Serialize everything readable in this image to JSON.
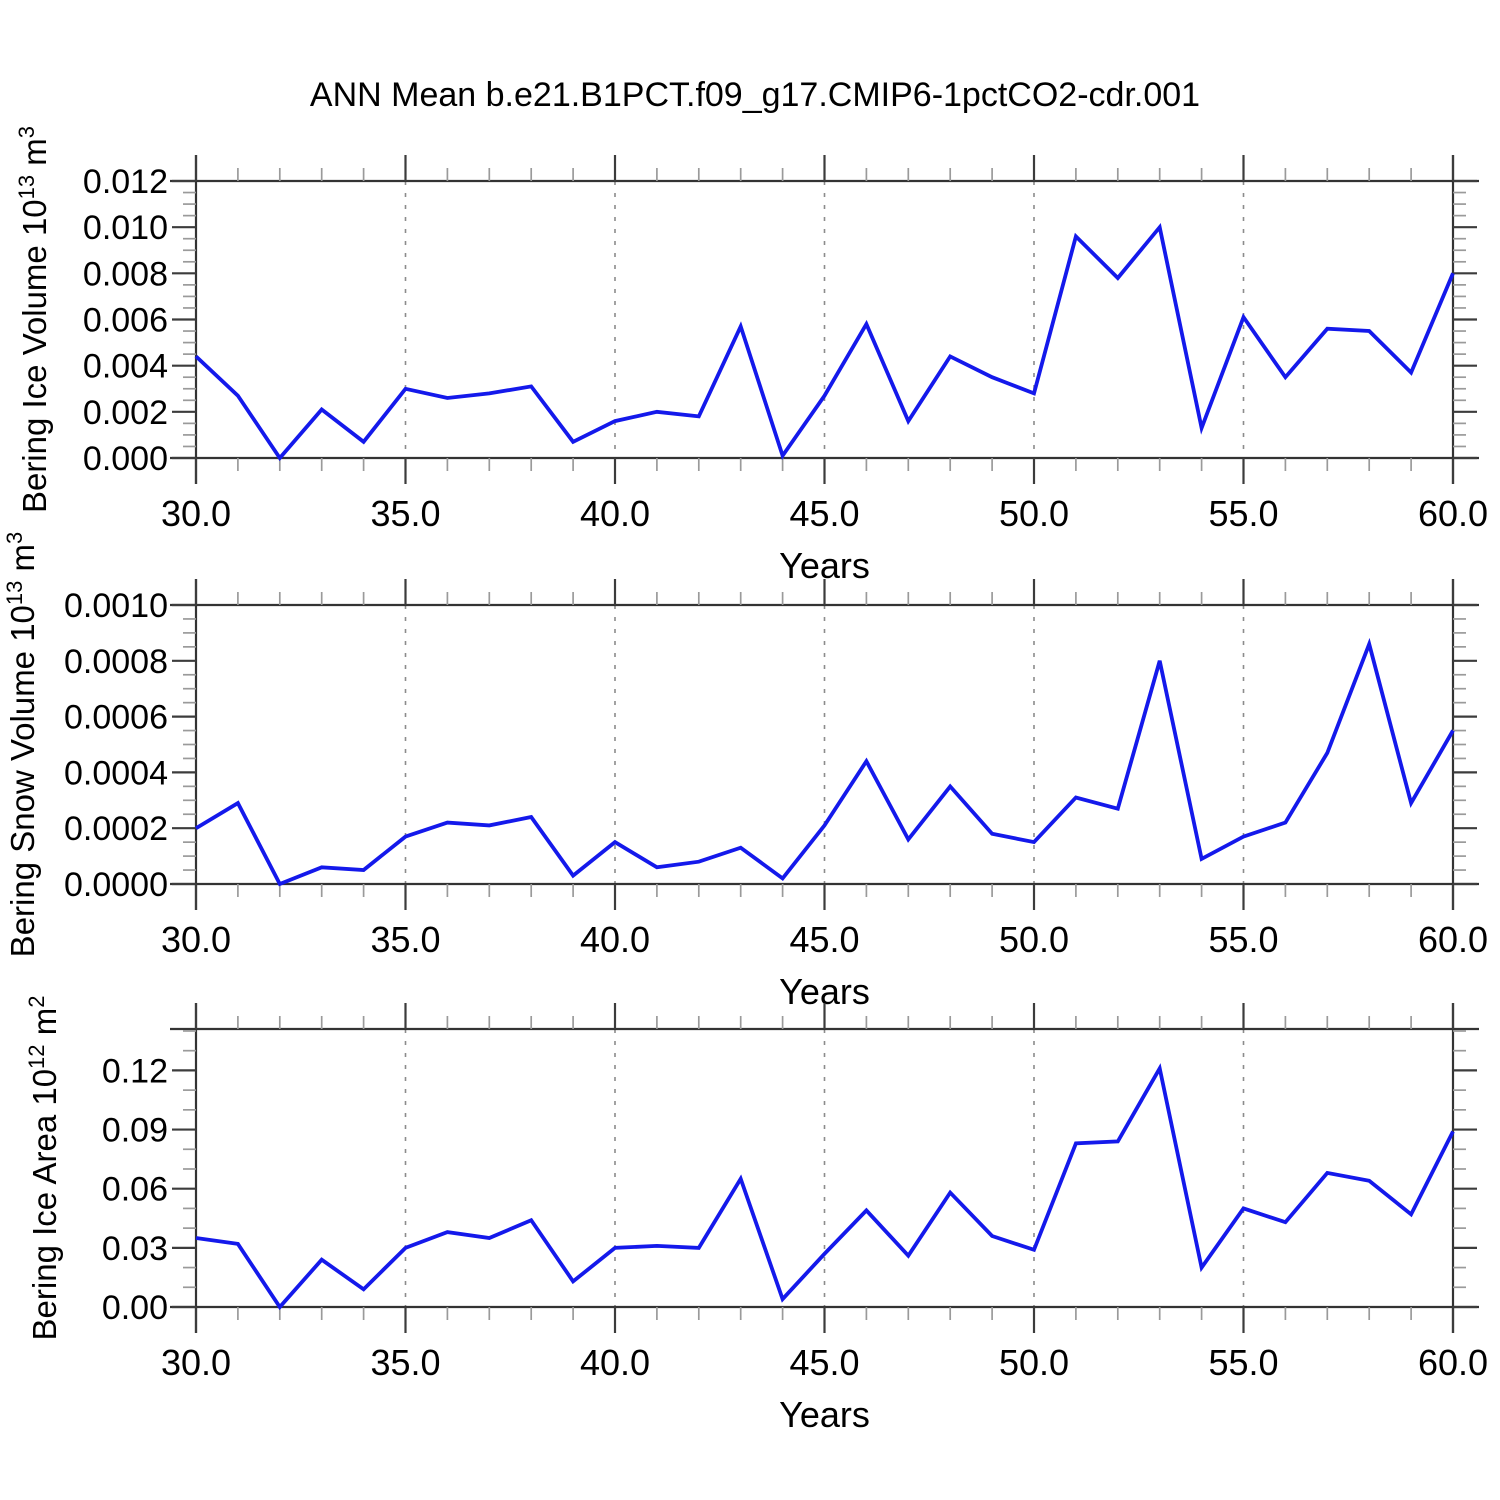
{
  "title": "ANN Mean b.e21.B1PCT.f09_g17.CMIP6-1pctCO2-cdr.001",
  "colors": {
    "line": "#1419eb",
    "axis": "#333333",
    "major_tick": "#3c3c3c",
    "minor_tick": "#9a9a9a",
    "grid": "#8c8c8c",
    "text": "#000000"
  },
  "x_axis": {
    "label": "Years",
    "range": [
      30,
      60
    ],
    "major_ticks": [
      30,
      35,
      40,
      45,
      50,
      55,
      60
    ],
    "tick_labels": [
      "30.0",
      "35.0",
      "40.0",
      "45.0",
      "50.0",
      "55.0",
      "60.0"
    ],
    "minor_step": 1,
    "grid_lines": [
      35,
      40,
      45,
      50,
      55
    ]
  },
  "years": [
    30,
    31,
    32,
    33,
    34,
    35,
    36,
    37,
    38,
    39,
    40,
    41,
    42,
    43,
    44,
    45,
    46,
    47,
    48,
    49,
    50,
    51,
    52,
    53,
    54,
    55,
    56,
    57,
    58,
    59,
    60
  ],
  "chart_data": [
    {
      "type": "line",
      "name": "bering-ice-volume",
      "ylabel_text": "Bering Ice Volume 10^13 m^3",
      "ylabel_parts": [
        {
          "t": "Bering Ice Volume 10"
        },
        {
          "t": "13",
          "sup": true
        },
        {
          "t": " m"
        },
        {
          "t": "3",
          "sup": true
        }
      ],
      "xlabel": "Years",
      "ylim": [
        0,
        0.012
      ],
      "yticks": [
        0.0,
        0.002,
        0.004,
        0.006,
        0.008,
        0.01,
        0.012
      ],
      "ytick_labels": [
        "0.000",
        "0.002",
        "0.004",
        "0.006",
        "0.008",
        "0.010",
        "0.012"
      ],
      "y_minor_step": 0.0005,
      "values": [
        0.0044,
        0.0027,
        0.0,
        0.0021,
        0.0007,
        0.003,
        0.0026,
        0.0028,
        0.0031,
        0.0007,
        0.0016,
        0.002,
        0.0018,
        0.0057,
        0.0001,
        0.0027,
        0.0058,
        0.0016,
        0.0044,
        0.0035,
        0.0028,
        0.0096,
        0.0078,
        0.01,
        0.0013,
        0.0061,
        0.0035,
        0.0056,
        0.0055,
        0.0037,
        0.008
      ]
    },
    {
      "type": "line",
      "name": "bering-snow-volume",
      "ylabel_text": "Bering Snow Volume 10^13 m^3",
      "ylabel_parts": [
        {
          "t": "Bering Snow Volume 10"
        },
        {
          "t": "13",
          "sup": true
        },
        {
          "t": " m"
        },
        {
          "t": "3",
          "sup": true
        }
      ],
      "xlabel": "Years",
      "ylim": [
        0,
        0.001
      ],
      "yticks": [
        0.0,
        0.0002,
        0.0004,
        0.0006,
        0.0008,
        0.001
      ],
      "ytick_labels": [
        "0.0000",
        "0.0002",
        "0.0004",
        "0.0006",
        "0.0008",
        "0.0010"
      ],
      "y_minor_step": 5e-05,
      "values": [
        0.0002,
        0.00029,
        0.0,
        6e-05,
        5e-05,
        0.00017,
        0.00022,
        0.00021,
        0.00024,
        3e-05,
        0.00015,
        6e-05,
        8e-05,
        0.00013,
        2e-05,
        0.00021,
        0.00044,
        0.00016,
        0.00035,
        0.00018,
        0.00015,
        0.00031,
        0.00027,
        0.0008,
        9e-05,
        0.00017,
        0.00022,
        0.00047,
        0.00086,
        0.00029,
        0.00055
      ]
    },
    {
      "type": "line",
      "name": "bering-ice-area",
      "ylabel_text": "Bering Ice Area 10^12 m^2",
      "ylabel_parts": [
        {
          "t": "Bering Ice Area 10"
        },
        {
          "t": "12",
          "sup": true
        },
        {
          "t": " m"
        },
        {
          "t": "2",
          "sup": true
        }
      ],
      "xlabel": "Years",
      "ylim": [
        0,
        0.141
      ],
      "yticks": [
        0.0,
        0.03,
        0.06,
        0.09,
        0.12
      ],
      "ytick_labels": [
        "0.00",
        "0.03",
        "0.06",
        "0.09",
        "0.12"
      ],
      "y_minor_step": 0.01,
      "values": [
        0.035,
        0.032,
        0.0,
        0.024,
        0.009,
        0.03,
        0.038,
        0.035,
        0.044,
        0.013,
        0.03,
        0.031,
        0.03,
        0.065,
        0.004,
        0.027,
        0.049,
        0.026,
        0.058,
        0.036,
        0.029,
        0.083,
        0.084,
        0.121,
        0.02,
        0.05,
        0.043,
        0.068,
        0.064,
        0.047,
        0.089
      ]
    }
  ]
}
